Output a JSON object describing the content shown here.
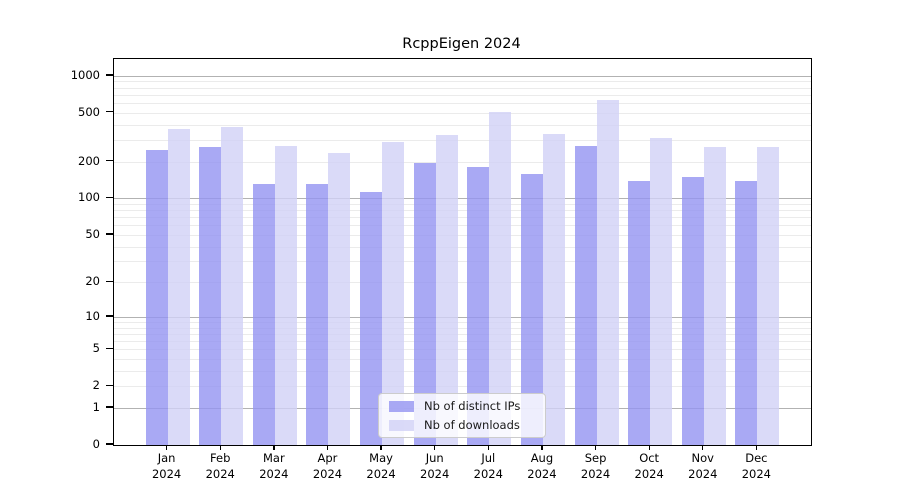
{
  "chart_data": {
    "type": "bar",
    "title": "RcppEigen 2024",
    "x_categories": [
      "Jan",
      "Feb",
      "Mar",
      "Apr",
      "May",
      "Jun",
      "Jul",
      "Aug",
      "Sep",
      "Oct",
      "Nov",
      "Dec"
    ],
    "x_year": "2024",
    "series": [
      {
        "name": "Nb of distinct IPs",
        "color": "#9494f1",
        "values": [
          250,
          265,
          130,
          130,
          113,
          195,
          180,
          158,
          270,
          140,
          150,
          140
        ]
      },
      {
        "name": "Nb of downloads",
        "color": "#d1d1f6",
        "values": [
          370,
          385,
          270,
          235,
          290,
          330,
          505,
          335,
          640,
          310,
          265,
          265
        ]
      }
    ],
    "y_scale": "log1p",
    "y_ticks": [
      0,
      1,
      2,
      5,
      10,
      20,
      50,
      100,
      200,
      500,
      1000
    ],
    "ylim": [
      0,
      1370
    ],
    "grid_major": [
      1,
      10,
      100,
      1000
    ],
    "grid_minor": [
      2,
      3,
      4,
      5,
      6,
      7,
      8,
      9,
      20,
      30,
      40,
      50,
      60,
      70,
      80,
      90,
      200,
      300,
      400,
      500,
      600,
      700,
      800,
      900
    ],
    "legend_position": "inside-bottom-center",
    "grid": "on"
  }
}
